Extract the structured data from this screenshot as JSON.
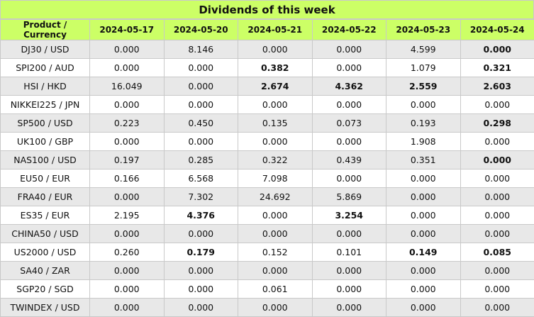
{
  "title": "Dividends of this week",
  "columns": [
    "Product / Currency",
    "2024-05-17",
    "2024-05-20",
    "2024-05-21",
    "2024-05-22",
    "2024-05-23",
    "2024-05-24"
  ],
  "rows": [
    {
      "product": "DJ30 / USD",
      "values": [
        "0.000",
        "8.146",
        "0.000",
        "0.000",
        "4.599",
        "0.000"
      ],
      "bold": [
        false,
        false,
        false,
        false,
        false,
        true
      ]
    },
    {
      "product": "SPI200 / AUD",
      "values": [
        "0.000",
        "0.000",
        "0.382",
        "0.000",
        "1.079",
        "0.321"
      ],
      "bold": [
        false,
        false,
        true,
        false,
        false,
        true
      ]
    },
    {
      "product": "HSI / HKD",
      "values": [
        "16.049",
        "0.000",
        "2.674",
        "4.362",
        "2.559",
        "2.603"
      ],
      "bold": [
        false,
        false,
        true,
        true,
        true,
        true
      ]
    },
    {
      "product": "NIKKEI225 / JPN",
      "values": [
        "0.000",
        "0.000",
        "0.000",
        "0.000",
        "0.000",
        "0.000"
      ],
      "bold": [
        false,
        false,
        false,
        false,
        false,
        false
      ]
    },
    {
      "product": "SP500 / USD",
      "values": [
        "0.223",
        "0.450",
        "0.135",
        "0.073",
        "0.193",
        "0.298"
      ],
      "bold": [
        false,
        false,
        false,
        false,
        false,
        true
      ]
    },
    {
      "product": "UK100 / GBP",
      "values": [
        "0.000",
        "0.000",
        "0.000",
        "0.000",
        "1.908",
        "0.000"
      ],
      "bold": [
        false,
        false,
        false,
        false,
        false,
        false
      ]
    },
    {
      "product": "NAS100 / USD",
      "values": [
        "0.197",
        "0.285",
        "0.322",
        "0.439",
        "0.351",
        "0.000"
      ],
      "bold": [
        false,
        false,
        false,
        false,
        false,
        true
      ]
    },
    {
      "product": "EU50 / EUR",
      "values": [
        "0.166",
        "6.568",
        "7.098",
        "0.000",
        "0.000",
        "0.000"
      ],
      "bold": [
        false,
        false,
        false,
        false,
        false,
        false
      ]
    },
    {
      "product": "FRA40 / EUR",
      "values": [
        "0.000",
        "7.302",
        "24.692",
        "5.869",
        "0.000",
        "0.000"
      ],
      "bold": [
        false,
        false,
        false,
        false,
        false,
        false
      ]
    },
    {
      "product": "ES35 / EUR",
      "values": [
        "2.195",
        "4.376",
        "0.000",
        "3.254",
        "0.000",
        "0.000"
      ],
      "bold": [
        false,
        true,
        false,
        true,
        false,
        false
      ]
    },
    {
      "product": "CHINA50 / USD",
      "values": [
        "0.000",
        "0.000",
        "0.000",
        "0.000",
        "0.000",
        "0.000"
      ],
      "bold": [
        false,
        false,
        false,
        false,
        false,
        false
      ]
    },
    {
      "product": "US2000 / USD",
      "values": [
        "0.260",
        "0.179",
        "0.152",
        "0.101",
        "0.149",
        "0.085"
      ],
      "bold": [
        false,
        true,
        false,
        false,
        true,
        true
      ]
    },
    {
      "product": "SA40 / ZAR",
      "values": [
        "0.000",
        "0.000",
        "0.000",
        "0.000",
        "0.000",
        "0.000"
      ],
      "bold": [
        false,
        false,
        false,
        false,
        false,
        false
      ]
    },
    {
      "product": "SGP20 / SGD",
      "values": [
        "0.000",
        "0.000",
        "0.061",
        "0.000",
        "0.000",
        "0.000"
      ],
      "bold": [
        false,
        false,
        false,
        false,
        false,
        false
      ]
    },
    {
      "product": "TWINDEX / USD",
      "values": [
        "0.000",
        "0.000",
        "0.000",
        "0.000",
        "0.000",
        "0.000"
      ],
      "bold": [
        false,
        false,
        false,
        false,
        false,
        false
      ]
    }
  ],
  "colors": {
    "header_bg": "#ccff66",
    "stripe_bg": "#e8e8e8",
    "border": "#c9c9c9"
  }
}
